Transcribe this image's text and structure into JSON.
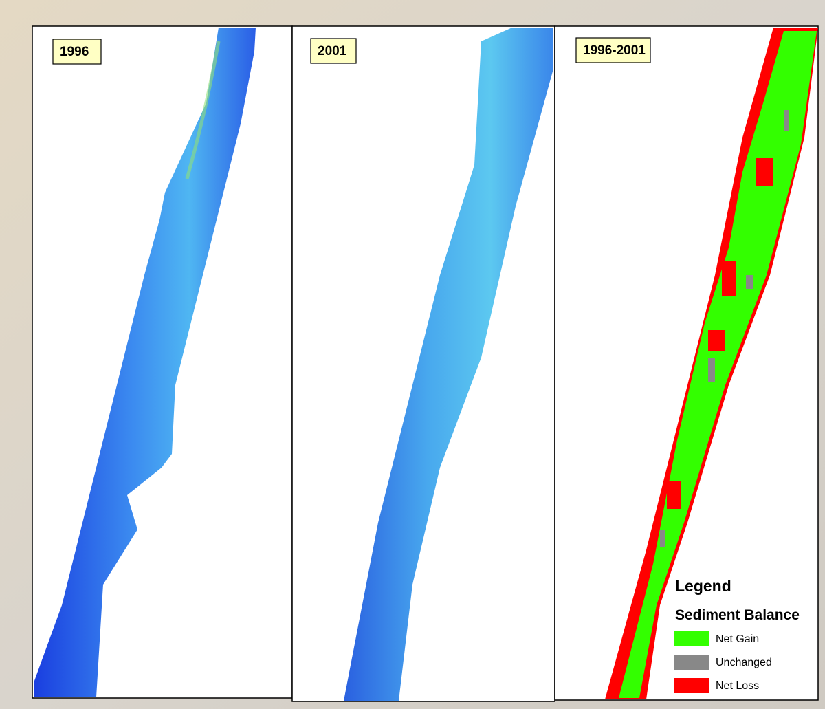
{
  "panels": [
    {
      "label": "1996"
    },
    {
      "label": "2001"
    },
    {
      "label": "1996-2001"
    }
  ],
  "legend": {
    "title": "Legend",
    "subtitle": "Sediment Balance",
    "items": [
      {
        "label": "Net Gain",
        "color": "#33ff00"
      },
      {
        "label": "Unchanged",
        "color": "#888888"
      },
      {
        "label": "Net Loss",
        "color": "#ff0000"
      }
    ]
  }
}
